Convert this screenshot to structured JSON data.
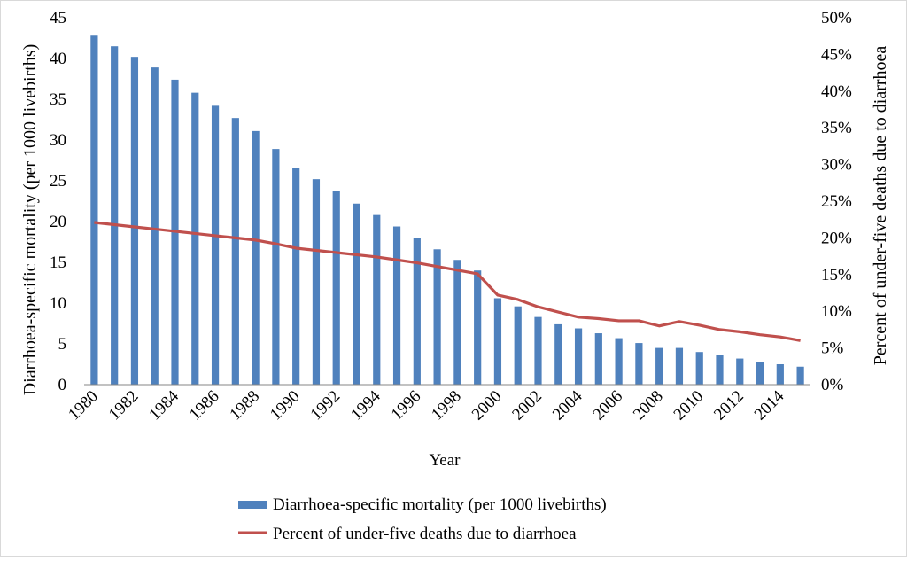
{
  "chart_data": {
    "type": "bar",
    "title": "",
    "xlabel": "Year",
    "ylabel_left": "Diarrhoea-specific mortality (per 1000 livebirths)",
    "ylabel_right": "Percent of under-five deaths due to diarrhoea",
    "ylim_left": [
      0,
      45
    ],
    "ylim_right": [
      0,
      50
    ],
    "yticks_left": [
      "0",
      "5",
      "10",
      "15",
      "20",
      "25",
      "30",
      "35",
      "40",
      "45"
    ],
    "yticks_right": [
      "0%",
      "5%",
      "10%",
      "15%",
      "20%",
      "25%",
      "30%",
      "35%",
      "40%",
      "45%",
      "50%"
    ],
    "grid": false,
    "legend_position": "bottom",
    "categories": [
      "1980",
      "1981",
      "1982",
      "1983",
      "1984",
      "1985",
      "1986",
      "1987",
      "1988",
      "1989",
      "1990",
      "1991",
      "1992",
      "1993",
      "1994",
      "1995",
      "1996",
      "1997",
      "1998",
      "1999",
      "2000",
      "2001",
      "2002",
      "2003",
      "2004",
      "2005",
      "2006",
      "2007",
      "2008",
      "2009",
      "2010",
      "2011",
      "2012",
      "2013",
      "2014",
      "2015"
    ],
    "x_tick_labels": [
      "1980",
      "1982",
      "1984",
      "1986",
      "1988",
      "1990",
      "1992",
      "1994",
      "1996",
      "1998",
      "2000",
      "2002",
      "2004",
      "2006",
      "2008",
      "2010",
      "2012",
      "2014"
    ],
    "series": [
      {
        "name": "Diarrhoea-specific mortality (per 1000 livebirths)",
        "type": "bar",
        "axis": "left",
        "color": "#4f81bd",
        "values": [
          42.8,
          41.5,
          40.2,
          38.9,
          37.4,
          35.8,
          34.2,
          32.7,
          31.1,
          28.9,
          26.6,
          25.2,
          23.7,
          22.2,
          20.8,
          19.4,
          18.0,
          16.6,
          15.3,
          14.0,
          10.6,
          9.6,
          8.3,
          7.4,
          6.9,
          6.3,
          5.7,
          5.1,
          4.5,
          4.5,
          4.0,
          3.6,
          3.2,
          2.8,
          2.5,
          2.2
        ]
      },
      {
        "name": "Percent of under-five deaths due to diarrhoea",
        "type": "line",
        "axis": "right",
        "color": "#c0504d",
        "values": [
          22.1,
          21.8,
          21.5,
          21.2,
          20.9,
          20.6,
          20.3,
          20.0,
          19.7,
          19.2,
          18.6,
          18.3,
          18.0,
          17.7,
          17.4,
          17.0,
          16.6,
          16.1,
          15.6,
          15.1,
          12.2,
          11.6,
          10.6,
          9.9,
          9.2,
          9.0,
          8.7,
          8.7,
          8.0,
          8.6,
          8.1,
          7.5,
          7.2,
          6.8,
          6.5,
          6.0
        ]
      }
    ]
  }
}
